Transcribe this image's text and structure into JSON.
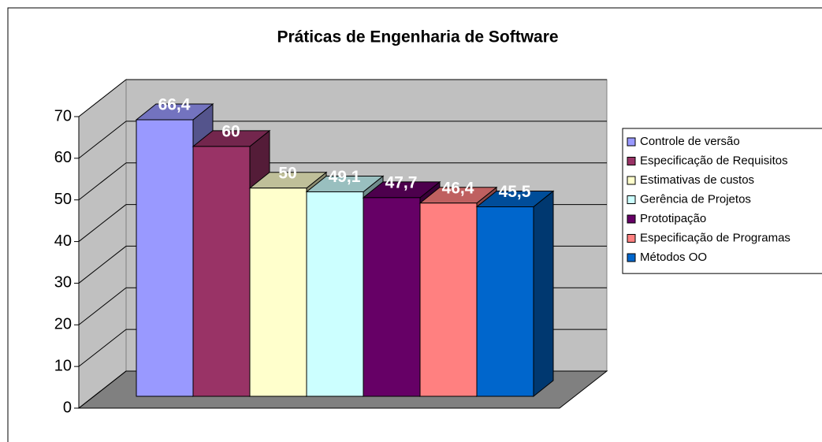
{
  "chart_data": {
    "type": "bar3d",
    "title": "Práticas de Engenharia de Software",
    "series": [
      {
        "name": "Controle de versão",
        "color": "#9999ff",
        "values": [
          66.4
        ],
        "value_labels": [
          "66,4"
        ]
      },
      {
        "name": "Especificação de Requisitos",
        "color": "#993366",
        "values": [
          60
        ],
        "value_labels": [
          "60"
        ]
      },
      {
        "name": "Estimativas de custos",
        "color": "#ffffcc",
        "values": [
          50
        ],
        "value_labels": [
          "50"
        ]
      },
      {
        "name": "Gerência de Projetos",
        "color": "#ccffff",
        "values": [
          49.1
        ],
        "value_labels": [
          "49,1"
        ]
      },
      {
        "name": "Prototipação",
        "color": "#660066",
        "values": [
          47.7
        ],
        "value_labels": [
          "47,7"
        ]
      },
      {
        "name": "Especificação de Programas",
        "color": "#ff8080",
        "values": [
          46.4
        ],
        "value_labels": [
          "46,4"
        ]
      },
      {
        "name": "Métodos OO",
        "color": "#0066cc",
        "values": [
          45.5
        ],
        "value_labels": [
          "45,5"
        ]
      }
    ],
    "ylim": [
      0,
      70
    ],
    "yticks": [
      0,
      10,
      20,
      30,
      40,
      50,
      60,
      70
    ],
    "grid": true,
    "legend": "right"
  }
}
